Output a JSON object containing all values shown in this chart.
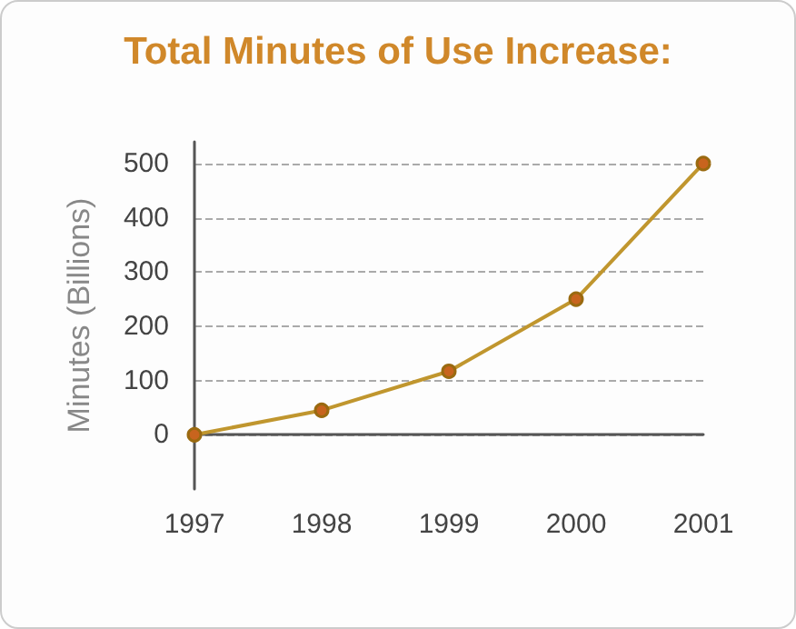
{
  "chart_data": {
    "type": "line",
    "title": "Total Minutes of Use Increase:",
    "ylabel": "Minutes (Billions)",
    "categories": [
      "1997",
      "1998",
      "1999",
      "2000",
      "2001"
    ],
    "series": [
      {
        "color": "#c0962e",
        "values": [
          0,
          45,
          117,
          250,
          500
        ]
      }
    ],
    "ylim": [
      -100,
      540
    ],
    "yticks": [
      0,
      100,
      200,
      300,
      400,
      500
    ],
    "grid": "y",
    "marker": "circle",
    "line_style": "solid"
  }
}
